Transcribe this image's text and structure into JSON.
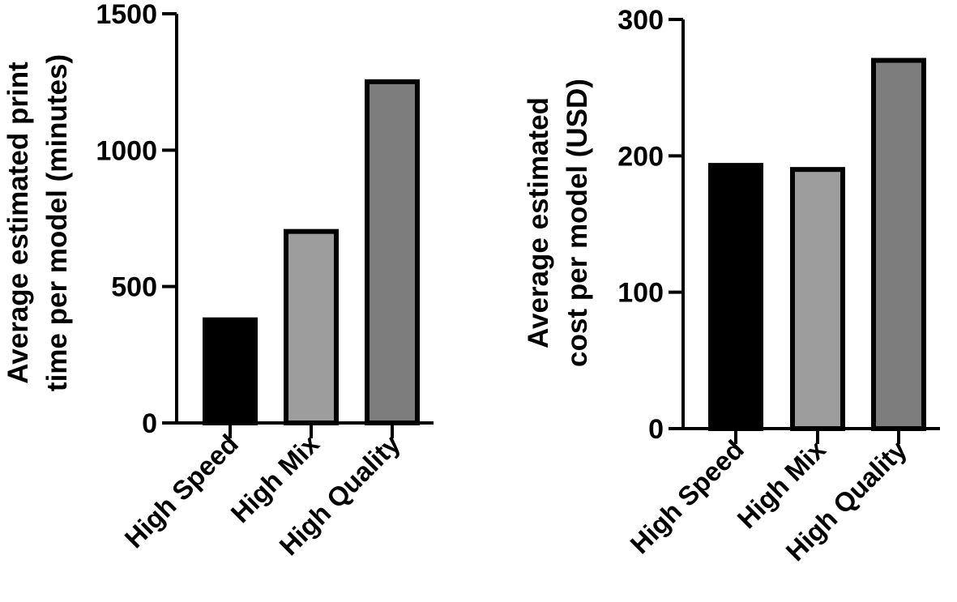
{
  "chart_data": [
    {
      "type": "bar",
      "categories": [
        "High Speed",
        "High Mix",
        "High Quality"
      ],
      "values": [
        378,
        702,
        1251
      ],
      "colors": [
        "#000000",
        "#9d9d9d",
        "#7d7d7d"
      ],
      "ylabel": [
        "Average estimated print",
        "time per model (minutes)"
      ],
      "ylim": [
        0,
        1500
      ],
      "yticks": [
        0,
        500,
        1000,
        1500
      ],
      "grid": false,
      "legend": "none"
    },
    {
      "type": "bar",
      "categories": [
        "High Speed",
        "High Mix",
        "High Quality"
      ],
      "values": [
        193,
        190,
        270
      ],
      "colors": [
        "#000000",
        "#9d9d9d",
        "#7d7d7d"
      ],
      "ylabel": [
        "Average estimated",
        "cost per model (USD)"
      ],
      "ylim": [
        0,
        300
      ],
      "yticks": [
        0,
        100,
        200,
        300
      ],
      "grid": false,
      "legend": "none"
    }
  ]
}
